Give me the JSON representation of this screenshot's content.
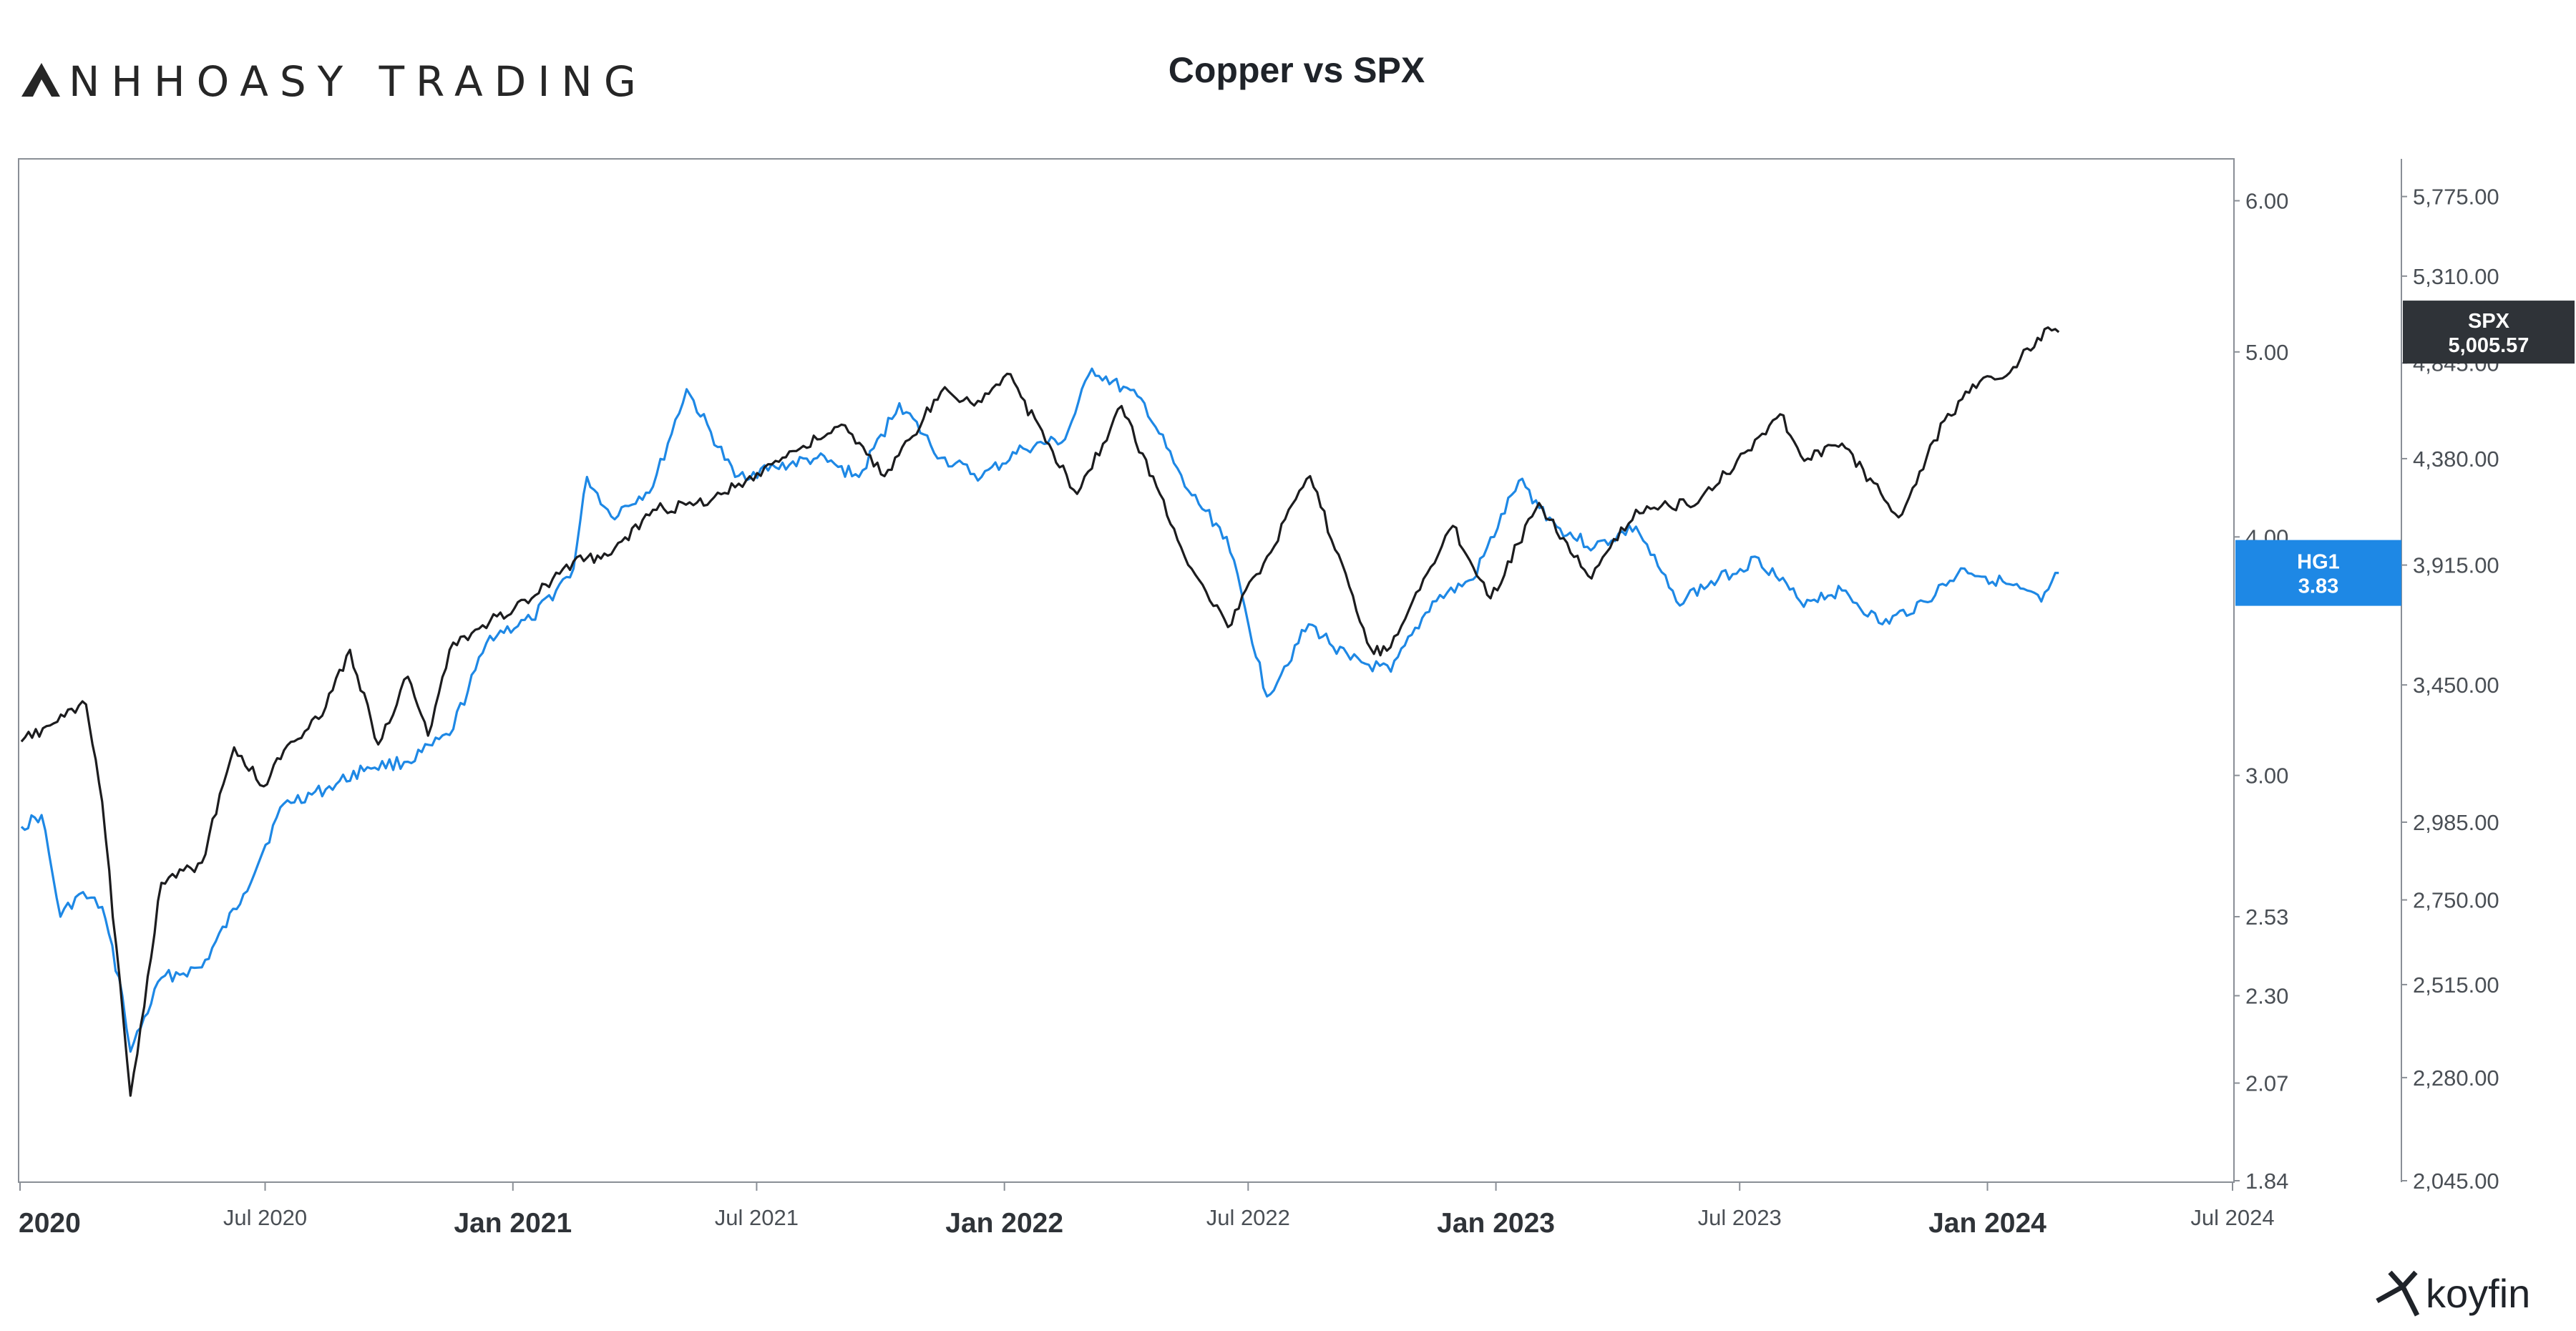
{
  "branding": {
    "name": "NHHOASY TRADING",
    "watermark": "koyfin"
  },
  "chart_data": {
    "type": "line",
    "title": "Copper vs SPX",
    "xlabel": "",
    "ylabel": "",
    "grid": false,
    "legend": "none",
    "x_range": [
      "2020-01-01",
      "2024-07-01"
    ],
    "x_ticks": [
      {
        "date": "2020-01-01",
        "label": "2020",
        "major": true
      },
      {
        "date": "2020-07-01",
        "label": "Jul 2020",
        "major": false
      },
      {
        "date": "2021-01-01",
        "label": "Jan 2021",
        "major": true
      },
      {
        "date": "2021-07-01",
        "label": "Jul 2021",
        "major": false
      },
      {
        "date": "2022-01-01",
        "label": "Jan 2022",
        "major": true
      },
      {
        "date": "2022-07-01",
        "label": "Jul 2022",
        "major": false
      },
      {
        "date": "2023-01-01",
        "label": "Jan 2023",
        "major": true
      },
      {
        "date": "2023-07-01",
        "label": "Jul 2023",
        "major": false
      },
      {
        "date": "2024-01-01",
        "label": "Jan 2024",
        "major": true
      },
      {
        "date": "2024-07-01",
        "label": "Jul 2024",
        "major": false
      }
    ],
    "left_axis": {
      "scale": "log",
      "range": [
        1.84,
        6.3
      ],
      "ticks": [
        {
          "value": 6.0,
          "label": "6.00"
        },
        {
          "value": 5.0,
          "label": "5.00"
        },
        {
          "value": 4.0,
          "label": "4.00"
        },
        {
          "value": 3.0,
          "label": "3.00"
        },
        {
          "value": 2.53,
          "label": "2.53"
        },
        {
          "value": 2.3,
          "label": "2.30"
        },
        {
          "value": 2.07,
          "label": "2.07"
        },
        {
          "value": 1.84,
          "label": "1.84"
        }
      ]
    },
    "right_axis": {
      "scale": "log",
      "range": [
        2045,
        6000
      ],
      "ticks": [
        {
          "value": 5775,
          "label": "5,775.00"
        },
        {
          "value": 5310,
          "label": "5,310.00"
        },
        {
          "value": 4845,
          "label": "4,845.00"
        },
        {
          "value": 4380,
          "label": "4,380.00"
        },
        {
          "value": 3915,
          "label": "3,915.00"
        },
        {
          "value": 3450,
          "label": "3,450.00"
        },
        {
          "value": 2985,
          "label": "2,985.00"
        },
        {
          "value": 2750,
          "label": "2,750.00"
        },
        {
          "value": 2515,
          "label": "2,515.00"
        },
        {
          "value": 2280,
          "label": "2,280.00"
        },
        {
          "value": 2045,
          "label": "2,045.00"
        }
      ]
    },
    "series": [
      {
        "name": "HG1",
        "axis": "left",
        "color": "#1e88e5",
        "last_label": "HG1",
        "last_value_label": "3.83",
        "points": [
          [
            "2020-01-02",
            2.82
          ],
          [
            "2020-01-17",
            2.86
          ],
          [
            "2020-01-31",
            2.53
          ],
          [
            "2020-02-14",
            2.6
          ],
          [
            "2020-03-02",
            2.56
          ],
          [
            "2020-03-17",
            2.3
          ],
          [
            "2020-03-23",
            2.15
          ],
          [
            "2020-04-15",
            2.35
          ],
          [
            "2020-05-15",
            2.38
          ],
          [
            "2020-06-15",
            2.6
          ],
          [
            "2020-07-15",
            2.9
          ],
          [
            "2020-08-15",
            2.95
          ],
          [
            "2020-09-15",
            3.03
          ],
          [
            "2020-10-15",
            3.05
          ],
          [
            "2020-11-15",
            3.15
          ],
          [
            "2020-12-15",
            3.55
          ],
          [
            "2021-01-15",
            3.62
          ],
          [
            "2021-02-15",
            3.85
          ],
          [
            "2021-02-25",
            4.3
          ],
          [
            "2021-03-15",
            4.1
          ],
          [
            "2021-04-15",
            4.25
          ],
          [
            "2021-05-10",
            4.78
          ],
          [
            "2021-06-15",
            4.3
          ],
          [
            "2021-07-15",
            4.35
          ],
          [
            "2021-08-15",
            4.4
          ],
          [
            "2021-09-15",
            4.3
          ],
          [
            "2021-10-15",
            4.7
          ],
          [
            "2021-11-15",
            4.4
          ],
          [
            "2021-12-15",
            4.3
          ],
          [
            "2022-01-15",
            4.45
          ],
          [
            "2022-02-15",
            4.5
          ],
          [
            "2022-03-07",
            4.9
          ],
          [
            "2022-04-15",
            4.7
          ],
          [
            "2022-05-15",
            4.25
          ],
          [
            "2022-06-15",
            4.0
          ],
          [
            "2022-07-15",
            3.3
          ],
          [
            "2022-08-15",
            3.6
          ],
          [
            "2022-09-15",
            3.45
          ],
          [
            "2022-10-15",
            3.4
          ],
          [
            "2022-11-15",
            3.7
          ],
          [
            "2022-12-15",
            3.8
          ],
          [
            "2023-01-18",
            4.28
          ],
          [
            "2023-02-15",
            4.05
          ],
          [
            "2023-03-15",
            3.95
          ],
          [
            "2023-04-15",
            4.05
          ],
          [
            "2023-05-15",
            3.7
          ],
          [
            "2023-06-15",
            3.8
          ],
          [
            "2023-07-15",
            3.9
          ],
          [
            "2023-08-15",
            3.7
          ],
          [
            "2023-09-15",
            3.75
          ],
          [
            "2023-10-15",
            3.6
          ],
          [
            "2023-11-15",
            3.7
          ],
          [
            "2023-12-15",
            3.85
          ],
          [
            "2024-01-15",
            3.78
          ],
          [
            "2024-02-10",
            3.7
          ],
          [
            "2024-02-23",
            3.83
          ]
        ]
      },
      {
        "name": "SPX",
        "axis": "right",
        "color": "#1c1c1e",
        "last_label": "SPX",
        "last_value_label": "5,005.57",
        "points": [
          [
            "2020-01-02",
            3250
          ],
          [
            "2020-02-19",
            3380
          ],
          [
            "2020-03-02",
            3050
          ],
          [
            "2020-03-23",
            2237
          ],
          [
            "2020-04-15",
            2800
          ],
          [
            "2020-05-15",
            2860
          ],
          [
            "2020-06-08",
            3230
          ],
          [
            "2020-06-30",
            3100
          ],
          [
            "2020-07-15",
            3220
          ],
          [
            "2020-08-15",
            3370
          ],
          [
            "2020-09-02",
            3580
          ],
          [
            "2020-09-23",
            3240
          ],
          [
            "2020-10-15",
            3480
          ],
          [
            "2020-10-30",
            3270
          ],
          [
            "2020-11-15",
            3580
          ],
          [
            "2020-12-15",
            3690
          ],
          [
            "2021-01-15",
            3780
          ],
          [
            "2021-02-15",
            3930
          ],
          [
            "2021-03-15",
            3960
          ],
          [
            "2021-04-15",
            4150
          ],
          [
            "2021-05-15",
            4170
          ],
          [
            "2021-06-15",
            4250
          ],
          [
            "2021-07-15",
            4370
          ],
          [
            "2021-08-15",
            4470
          ],
          [
            "2021-09-02",
            4540
          ],
          [
            "2021-10-04",
            4300
          ],
          [
            "2021-11-15",
            4700
          ],
          [
            "2021-12-15",
            4650
          ],
          [
            "2022-01-03",
            4790
          ],
          [
            "2022-02-24",
            4220
          ],
          [
            "2022-03-29",
            4630
          ],
          [
            "2022-05-20",
            3900
          ],
          [
            "2022-06-16",
            3667
          ],
          [
            "2022-08-16",
            4300
          ],
          [
            "2022-09-30",
            3585
          ],
          [
            "2022-10-12",
            3577
          ],
          [
            "2022-11-30",
            4080
          ],
          [
            "2022-12-28",
            3780
          ],
          [
            "2023-02-02",
            4180
          ],
          [
            "2023-03-13",
            3860
          ],
          [
            "2023-04-15",
            4150
          ],
          [
            "2023-05-31",
            4180
          ],
          [
            "2023-07-31",
            4590
          ],
          [
            "2023-08-18",
            4370
          ],
          [
            "2023-09-15",
            4450
          ],
          [
            "2023-10-27",
            4117
          ],
          [
            "2023-11-30",
            4560
          ],
          [
            "2023-12-29",
            4770
          ],
          [
            "2024-01-15",
            4780
          ],
          [
            "2024-02-15",
            5030
          ],
          [
            "2024-02-23",
            5005.57
          ]
        ]
      }
    ]
  }
}
